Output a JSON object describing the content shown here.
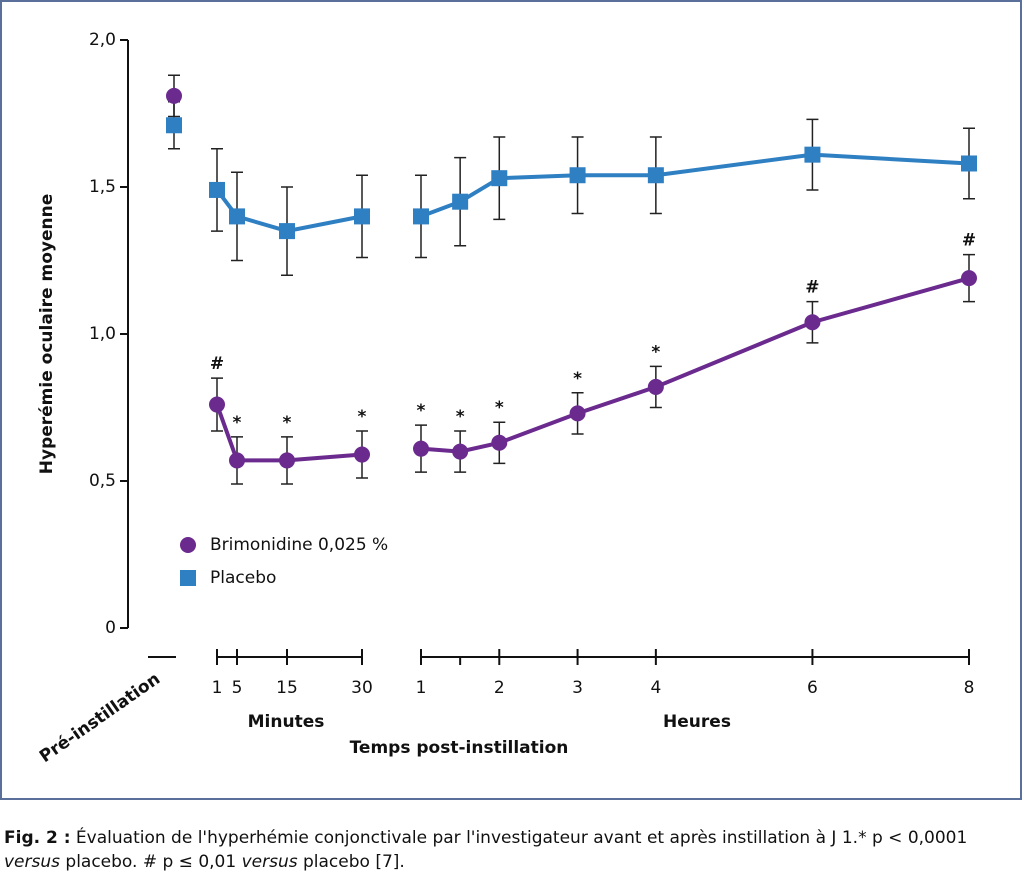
{
  "chart_data": {
    "type": "line",
    "y_label": "Hyperémie oculaire moyenne",
    "x_label": "Temps post-instillation",
    "ylim": [
      0,
      2
    ],
    "yticks": [
      0,
      {
        "value": 0.5,
        "label": "0,5"
      },
      {
        "value": 1,
        "label": "1,0"
      },
      {
        "value": 1.5,
        "label": "1,5"
      },
      {
        "value": 2,
        "label": "2,0"
      }
    ],
    "segments": [
      {
        "label": "Pré-instillation"
      },
      {
        "label": "Minutes",
        "xlim": [
          1,
          30
        ],
        "xticks": [
          1,
          5,
          15,
          30
        ]
      },
      {
        "label": "Heures",
        "xlim": [
          1,
          8
        ],
        "xticks": [
          1,
          2,
          3,
          4,
          6,
          8
        ],
        "minor_xticks": [
          1.5
        ]
      }
    ],
    "series": [
      {
        "name": "Brimonidine 0,025 %",
        "color": "#6b2a8e",
        "marker": "circle",
        "pre_value": 1.81,
        "pre_error": 0.07,
        "segments": [
          null,
          {
            "x": [
              1,
              5,
              15,
              30
            ],
            "values": [
              0.76,
              0.57,
              0.57,
              0.59
            ],
            "errors": [
              0.09,
              0.08,
              0.08,
              0.08
            ],
            "annotations": [
              "#",
              "*",
              "*",
              "*"
            ]
          },
          {
            "x": [
              1,
              1.5,
              2,
              3,
              4,
              6,
              8
            ],
            "values": [
              0.61,
              0.6,
              0.63,
              0.73,
              0.82,
              1.04,
              1.19
            ],
            "errors": [
              0.08,
              0.07,
              0.07,
              0.07,
              0.07,
              0.07,
              0.08
            ],
            "annotations": [
              "*",
              "*",
              "*",
              "*",
              "*",
              "#",
              "#"
            ]
          }
        ]
      },
      {
        "name": "Placebo",
        "color": "#2f7fc3",
        "marker": "square",
        "pre_value": 1.71,
        "pre_error": 0.08,
        "segments": [
          null,
          {
            "x": [
              1,
              5,
              15,
              30
            ],
            "values": [
              1.49,
              1.4,
              1.35,
              1.4
            ],
            "errors": [
              0.14,
              0.15,
              0.15,
              0.14
            ]
          },
          {
            "x": [
              1,
              1.5,
              2,
              3,
              4,
              6,
              8
            ],
            "values": [
              1.4,
              1.45,
              1.53,
              1.54,
              1.54,
              1.61,
              1.58
            ],
            "errors": [
              0.14,
              0.15,
              0.14,
              0.13,
              0.13,
              0.12,
              0.12
            ]
          }
        ]
      }
    ],
    "legend": "lower-left"
  },
  "caption": {
    "label": "Fig. 2 :",
    "parts": [
      " Évaluation de l'hyperhémie conjonctivale par l'investigateur avant et après instillation à J 1.* p < 0,0001 ",
      "versus",
      " placebo. # p ≤ 0,01 ",
      "versus",
      " placebo [7]."
    ]
  }
}
